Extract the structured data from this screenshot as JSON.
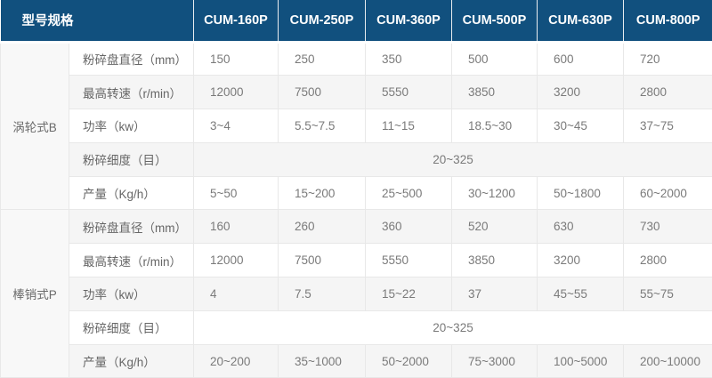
{
  "table": {
    "header": {
      "corner_label": "型号规格",
      "models": [
        "CUM-160P",
        "CUM-250P",
        "CUM-360P",
        "CUM-500P",
        "CUM-630P",
        "CUM-800P"
      ]
    },
    "sections": [
      {
        "group": "涡轮式B",
        "rows": [
          {
            "label": "粉碎盘直径（mm）",
            "values": [
              "150",
              "250",
              "350",
              "500",
              "600",
              "720"
            ]
          },
          {
            "label": "最高转速（r/min）",
            "values": [
              "12000",
              "7500",
              "5550",
              "3850",
              "3200",
              "2800"
            ]
          },
          {
            "label": "功率（kw）",
            "values": [
              "3~4",
              "5.5~7.5",
              "11~15",
              "18.5~30",
              "30~45",
              "37~75"
            ]
          },
          {
            "label": "粉碎细度（目）",
            "merged_value": "20~325"
          },
          {
            "label": "产量（Kg/h）",
            "values": [
              "5~50",
              "15~200",
              "25~500",
              "30~1200",
              "50~1800",
              "60~2000"
            ]
          }
        ]
      },
      {
        "group": "棒销式P",
        "rows": [
          {
            "label": "粉碎盘直径（mm）",
            "values": [
              "160",
              "260",
              "360",
              "520",
              "630",
              "730"
            ]
          },
          {
            "label": "最高转速（r/min）",
            "values": [
              "12000",
              "7500",
              "5550",
              "3850",
              "3200",
              "2800"
            ]
          },
          {
            "label": "功率（kw）",
            "values": [
              "4",
              "7.5",
              "15~22",
              "37",
              "45~55",
              "55~75"
            ]
          },
          {
            "label": "粉碎细度（目）",
            "merged_value": "20~325"
          },
          {
            "label": "产量（Kg/h）",
            "values": [
              "20~200",
              "35~1000",
              "50~2000",
              "75~3000",
              "100~5000",
              "200~10000"
            ]
          }
        ]
      }
    ],
    "colors": {
      "header_bg": "#11507e",
      "header_text": "#ffffff",
      "stripe_bg": "#f5f5f5",
      "row_bg": "#ffffff",
      "group_bg": "#f8f8f8",
      "border": "#e8e8e8",
      "body_text": "#7a7a7a"
    }
  }
}
